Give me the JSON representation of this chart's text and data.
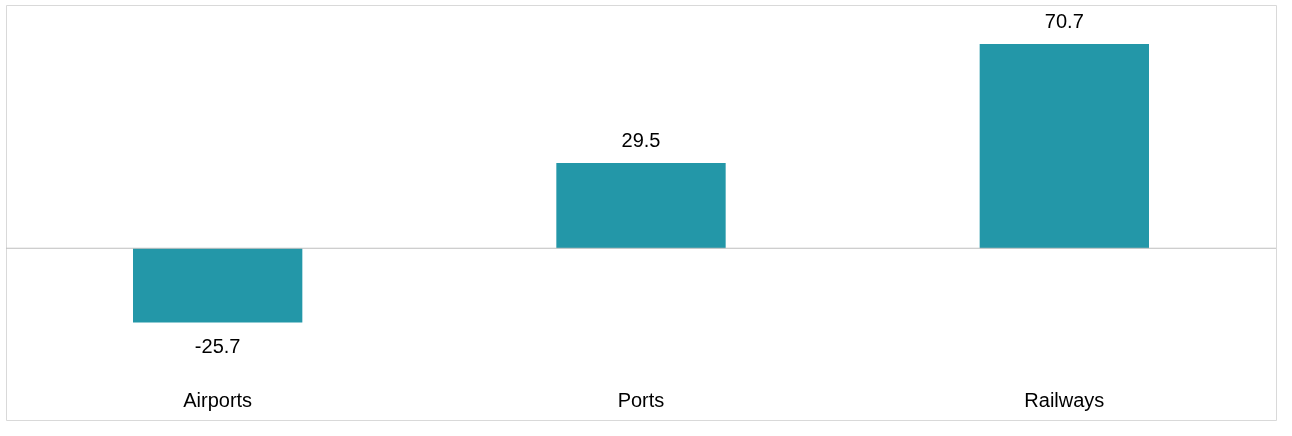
{
  "chart_data": {
    "type": "bar",
    "categories": [
      "Airports",
      "Ports",
      "Railways"
    ],
    "values": [
      -25.7,
      29.5,
      70.7
    ],
    "color": "#2397a8",
    "data_labels": true
  }
}
